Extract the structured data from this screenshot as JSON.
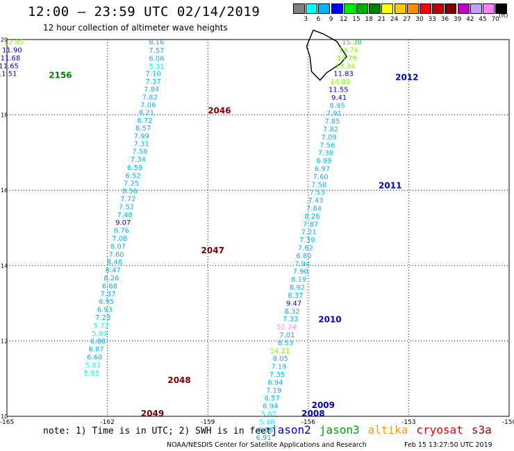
{
  "header": {
    "title": "12:00 — 23:59 UTC 02/14/2019",
    "subtitle": "12 hour collection of altimeter wave heights"
  },
  "legend": {
    "colors": [
      "#808080",
      "#00ffff",
      "#00b4ff",
      "#0000ff",
      "#00ee00",
      "#00b000",
      "#008000",
      "#ffff00",
      "#ffc800",
      "#ff8c00",
      "#ff0000",
      "#c00000",
      "#800000",
      "#c000c0",
      "#c0a0ff",
      "#ff80ff",
      "#000000"
    ],
    "labels": [
      "3",
      "6",
      "9",
      "12",
      "15",
      "18",
      "21",
      "24",
      "27",
      "30",
      "33",
      "36",
      "39",
      "42",
      "45",
      "70"
    ],
    "units": "(ft)"
  },
  "map": {
    "lon_range": [
      -165,
      -150
    ],
    "lat_range": [
      10,
      20
    ],
    "x_ticks": [
      "-165",
      "-162",
      "-159",
      "-156",
      "-153",
      "-150"
    ],
    "y_ticks": [
      "10",
      "12",
      "14",
      "16",
      "18",
      "20"
    ],
    "tracks": [
      {
        "points": [
          {
            "lon": -160.3,
            "lat": 19.87,
            "v": "8.16",
            "c": "#00b4ff"
          },
          {
            "lon": -160.3,
            "lat": 19.65,
            "v": "7.57",
            "c": "#00b4ff"
          },
          {
            "lon": -160.3,
            "lat": 19.44,
            "v": "6.06",
            "c": "#00b4ff"
          },
          {
            "lon": -160.3,
            "lat": 19.23,
            "v": "5.31",
            "c": "#00ffff"
          },
          {
            "lon": -160.4,
            "lat": 19.03,
            "v": "7.10",
            "c": "#00b4ff"
          },
          {
            "lon": -160.4,
            "lat": 18.82,
            "v": "7.37",
            "c": "#00b4ff"
          },
          {
            "lon": -160.45,
            "lat": 18.62,
            "v": "7.84",
            "c": "#00b4ff"
          },
          {
            "lon": -160.5,
            "lat": 18.41,
            "v": "7.82",
            "c": "#00b4ff"
          },
          {
            "lon": -160.55,
            "lat": 18.2,
            "v": "7.06",
            "c": "#00b4ff"
          },
          {
            "lon": -160.6,
            "lat": 18.0,
            "v": "8.21",
            "c": "#00b4ff"
          },
          {
            "lon": -160.65,
            "lat": 17.79,
            "v": "6.72",
            "c": "#00b4ff"
          },
          {
            "lon": -160.7,
            "lat": 17.59,
            "v": "8.57",
            "c": "#00b4ff"
          },
          {
            "lon": -160.75,
            "lat": 17.38,
            "v": "7.99",
            "c": "#00b4ff"
          },
          {
            "lon": -160.75,
            "lat": 17.17,
            "v": "7.31",
            "c": "#00b4ff"
          },
          {
            "lon": -160.8,
            "lat": 16.97,
            "v": "7.56",
            "c": "#00b4ff"
          },
          {
            "lon": -160.85,
            "lat": 16.76,
            "v": "7.34",
            "c": "#00b4ff"
          },
          {
            "lon": -160.95,
            "lat": 16.54,
            "v": "6.59",
            "c": "#00b4ff"
          },
          {
            "lon": -161.0,
            "lat": 16.33,
            "v": "6.52",
            "c": "#00b4ff"
          },
          {
            "lon": -161.05,
            "lat": 16.12,
            "v": "7.25",
            "c": "#00b4ff"
          },
          {
            "lon": -161.1,
            "lat": 15.92,
            "v": "8.56",
            "c": "#00b4ff"
          },
          {
            "lon": -161.15,
            "lat": 15.71,
            "v": "7.72",
            "c": "#00b4ff"
          },
          {
            "lon": -161.2,
            "lat": 15.5,
            "v": "7.52",
            "c": "#00b4ff"
          },
          {
            "lon": -161.25,
            "lat": 15.29,
            "v": "7.48",
            "c": "#00b4ff"
          },
          {
            "lon": -161.3,
            "lat": 15.08,
            "v": "9.07",
            "c": "#0000ff"
          },
          {
            "lon": -161.35,
            "lat": 14.87,
            "v": "8.76",
            "c": "#00b4ff"
          },
          {
            "lon": -161.4,
            "lat": 14.66,
            "v": "7.08",
            "c": "#00b4ff"
          },
          {
            "lon": -161.45,
            "lat": 14.45,
            "v": "8.07",
            "c": "#00b4ff"
          },
          {
            "lon": -161.5,
            "lat": 14.24,
            "v": "7.60",
            "c": "#00b4ff"
          },
          {
            "lon": -161.55,
            "lat": 14.03,
            "v": "8.46",
            "c": "#00b4ff"
          },
          {
            "lon": -161.6,
            "lat": 13.82,
            "v": "8.47",
            "c": "#00b4ff"
          },
          {
            "lon": -161.65,
            "lat": 13.61,
            "v": "8.26",
            "c": "#00b4ff"
          },
          {
            "lon": -161.7,
            "lat": 13.4,
            "v": "6.68",
            "c": "#00b4ff"
          },
          {
            "lon": -161.75,
            "lat": 13.19,
            "v": "7.37",
            "c": "#00b4ff"
          },
          {
            "lon": -161.8,
            "lat": 12.98,
            "v": "6.95",
            "c": "#00b4ff"
          },
          {
            "lon": -161.85,
            "lat": 12.77,
            "v": "6.93",
            "c": "#00b4ff"
          },
          {
            "lon": -161.9,
            "lat": 12.56,
            "v": "7.23",
            "c": "#00b4ff"
          },
          {
            "lon": -161.95,
            "lat": 12.35,
            "v": "5.72",
            "c": "#00ffff"
          },
          {
            "lon": -162.0,
            "lat": 12.14,
            "v": "5.89",
            "c": "#00ffff"
          },
          {
            "lon": -162.05,
            "lat": 11.93,
            "v": "6.88",
            "c": "#00b4ff"
          },
          {
            "lon": -162.1,
            "lat": 11.72,
            "v": "6.87",
            "c": "#00b4ff"
          },
          {
            "lon": -162.15,
            "lat": 11.51,
            "v": "6.60",
            "c": "#00b4ff"
          },
          {
            "lon": -162.2,
            "lat": 11.3,
            "v": "5.83",
            "c": "#00ffff"
          },
          {
            "lon": -162.25,
            "lat": 11.09,
            "v": "5.93",
            "c": "#00ffff"
          }
        ]
      },
      {
        "points": [
          {
            "lon": -154.4,
            "lat": 19.87,
            "v": "15.38",
            "c": "#00ee00"
          },
          {
            "lon": -154.5,
            "lat": 19.66,
            "v": "14.76",
            "c": "#7cfc00"
          },
          {
            "lon": -154.55,
            "lat": 19.45,
            "v": "14.79",
            "c": "#7cfc00"
          },
          {
            "lon": -154.6,
            "lat": 19.24,
            "v": "13.34",
            "c": "#7cfc00"
          },
          {
            "lon": -154.65,
            "lat": 19.03,
            "v": "11.83",
            "c": "#0000c0"
          },
          {
            "lon": -154.75,
            "lat": 18.82,
            "v": "14.03",
            "c": "#7cfc00"
          },
          {
            "lon": -154.8,
            "lat": 18.61,
            "v": "11.55",
            "c": "#0000c0"
          },
          {
            "lon": -154.85,
            "lat": 18.4,
            "v": "9.41",
            "c": "#0000ff"
          },
          {
            "lon": -154.9,
            "lat": 18.19,
            "v": "8.95",
            "c": "#00b4ff"
          },
          {
            "lon": -155.0,
            "lat": 17.98,
            "v": "7.91",
            "c": "#00b4ff"
          },
          {
            "lon": -155.05,
            "lat": 17.77,
            "v": "7.85",
            "c": "#00b4ff"
          },
          {
            "lon": -155.1,
            "lat": 17.56,
            "v": "7.82",
            "c": "#00b4ff"
          },
          {
            "lon": -155.15,
            "lat": 17.35,
            "v": "7.09",
            "c": "#00b4ff"
          },
          {
            "lon": -155.2,
            "lat": 17.14,
            "v": "7.56",
            "c": "#00b4ff"
          },
          {
            "lon": -155.25,
            "lat": 16.93,
            "v": "7.38",
            "c": "#00b4ff"
          },
          {
            "lon": -155.3,
            "lat": 16.72,
            "v": "6.99",
            "c": "#00b4ff"
          },
          {
            "lon": -155.35,
            "lat": 16.51,
            "v": "6.97",
            "c": "#00b4ff"
          },
          {
            "lon": -155.4,
            "lat": 16.3,
            "v": "7.60",
            "c": "#00b4ff"
          },
          {
            "lon": -155.45,
            "lat": 16.09,
            "v": "7.58",
            "c": "#00b4ff"
          },
          {
            "lon": -155.5,
            "lat": 15.88,
            "v": "7.53",
            "c": "#00b4ff"
          },
          {
            "lon": -155.55,
            "lat": 15.67,
            "v": "7.43",
            "c": "#00b4ff"
          },
          {
            "lon": -155.6,
            "lat": 15.46,
            "v": "7.84",
            "c": "#00b4ff"
          },
          {
            "lon": -155.65,
            "lat": 15.25,
            "v": "8.26",
            "c": "#00b4ff"
          },
          {
            "lon": -155.7,
            "lat": 15.04,
            "v": "7.87",
            "c": "#00b4ff"
          },
          {
            "lon": -155.75,
            "lat": 14.83,
            "v": "7.21",
            "c": "#00b4ff"
          },
          {
            "lon": -155.8,
            "lat": 14.62,
            "v": "7.39",
            "c": "#00b4ff"
          },
          {
            "lon": -155.85,
            "lat": 14.41,
            "v": "7.62",
            "c": "#00b4ff"
          },
          {
            "lon": -155.9,
            "lat": 14.2,
            "v": "6.80",
            "c": "#00b4ff"
          },
          {
            "lon": -155.95,
            "lat": 13.99,
            "v": "7.94",
            "c": "#00b4ff"
          },
          {
            "lon": -156.0,
            "lat": 13.78,
            "v": "7.90",
            "c": "#00b4ff"
          },
          {
            "lon": -156.05,
            "lat": 13.57,
            "v": "8.19",
            "c": "#00b4ff"
          },
          {
            "lon": -156.1,
            "lat": 13.36,
            "v": "8.92",
            "c": "#00b4ff"
          },
          {
            "lon": -156.15,
            "lat": 13.15,
            "v": "8.37",
            "c": "#00b4ff"
          },
          {
            "lon": -156.2,
            "lat": 12.94,
            "v": "9.47",
            "c": "#0000ff"
          },
          {
            "lon": -156.25,
            "lat": 12.73,
            "v": "8.32",
            "c": "#00b4ff"
          },
          {
            "lon": -156.3,
            "lat": 12.52,
            "v": "7.33",
            "c": "#00b4ff"
          },
          {
            "lon": -156.35,
            "lat": 12.31,
            "v": "52.24",
            "c": "#ff80ff"
          },
          {
            "lon": -156.4,
            "lat": 12.1,
            "v": "7.01",
            "c": "#00b4ff"
          },
          {
            "lon": -156.45,
            "lat": 11.89,
            "v": "8.53",
            "c": "#00b4ff"
          },
          {
            "lon": -156.55,
            "lat": 11.68,
            "v": "14.21",
            "c": "#7cfc00"
          },
          {
            "lon": -156.6,
            "lat": 11.47,
            "v": "8.05",
            "c": "#00b4ff"
          },
          {
            "lon": -156.65,
            "lat": 11.26,
            "v": "7.19",
            "c": "#00b4ff"
          },
          {
            "lon": -156.7,
            "lat": 11.05,
            "v": "7.35",
            "c": "#00b4ff"
          },
          {
            "lon": -156.75,
            "lat": 10.84,
            "v": "6.94",
            "c": "#00b4ff"
          },
          {
            "lon": -156.8,
            "lat": 10.63,
            "v": "7.19",
            "c": "#00b4ff"
          },
          {
            "lon": -156.85,
            "lat": 10.42,
            "v": "6.57",
            "c": "#00b4ff"
          },
          {
            "lon": -156.9,
            "lat": 10.21,
            "v": "6.94",
            "c": "#00b4ff"
          },
          {
            "lon": -156.95,
            "lat": 10.0,
            "v": "5.87",
            "c": "#00ffff"
          },
          {
            "lon": -157.0,
            "lat": 9.79,
            "v": "5.98",
            "c": "#00ffff"
          },
          {
            "lon": -157.05,
            "lat": 9.58,
            "v": "6.96",
            "c": "#00b4ff"
          },
          {
            "lon": -157.1,
            "lat": 9.37,
            "v": "6.91",
            "c": "#00b4ff"
          }
        ]
      },
      {
        "points": [
          {
            "lon": -164.5,
            "lat": 19.87,
            "v": "12.85",
            "c": "#7cfc00"
          },
          {
            "lon": -164.55,
            "lat": 19.66,
            "v": "11.90",
            "c": "#0000c0"
          },
          {
            "lon": -164.6,
            "lat": 19.45,
            "v": "11.68",
            "c": "#0000c0"
          },
          {
            "lon": -164.65,
            "lat": 19.24,
            "v": "11.65",
            "c": "#0000c0"
          },
          {
            "lon": -164.7,
            "lat": 19.03,
            "v": "11.51",
            "c": "#0000c0"
          }
        ]
      }
    ],
    "track_labels": [
      {
        "lon": -163.75,
        "lat": 18.98,
        "text": "2156",
        "c": "#008000"
      },
      {
        "lon": -153.4,
        "lat": 18.92,
        "text": "2012",
        "c": "#0000c0"
      },
      {
        "lon": -159.0,
        "lat": 18.04,
        "text": "2046",
        "c": "#800000"
      },
      {
        "lon": -153.9,
        "lat": 16.05,
        "text": "2011",
        "c": "#0000c0"
      },
      {
        "lon": -159.2,
        "lat": 14.33,
        "text": "2047",
        "c": "#800000"
      },
      {
        "lon": -155.7,
        "lat": 12.5,
        "text": "2010",
        "c": "#0000c0"
      },
      {
        "lon": -160.2,
        "lat": 10.88,
        "text": "2048",
        "c": "#800000"
      },
      {
        "lon": -155.9,
        "lat": 10.22,
        "text": "2009",
        "c": "#0000c0"
      },
      {
        "lon": -156.2,
        "lat": 10.0,
        "text": "2008",
        "c": "#0000c0"
      },
      {
        "lon": -161.0,
        "lat": 10.0,
        "text": "2049",
        "c": "#800000"
      }
    ]
  },
  "footer": {
    "note": "note: 1) Time is in UTC; 2) SWH is in feet",
    "satellites": [
      {
        "name": "jason2",
        "color": "#0000c0"
      },
      {
        "name": "jason3",
        "color": "#00a000"
      },
      {
        "name": "altika",
        "color": "#ff9900"
      },
      {
        "name": "cryosat",
        "color": "#e00000"
      },
      {
        "name": "s3a",
        "color": "#a00000"
      }
    ],
    "credit": "NOAA/NESDIS Center for Satellite Applications and Research",
    "timestamp": "Feb 15 13:27:50 UTC 2019"
  }
}
